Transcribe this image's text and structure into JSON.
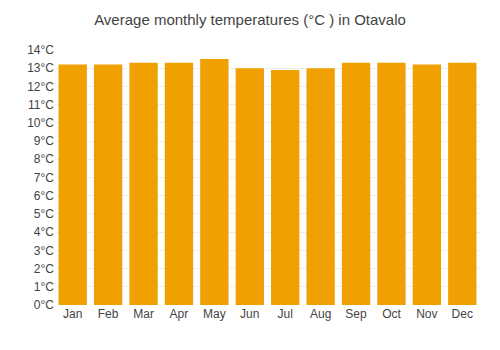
{
  "chart_data": {
    "type": "bar",
    "title": "Average monthly temperatures (°C ) in Otavalo",
    "categories": [
      "Jan",
      "Feb",
      "Mar",
      "Apr",
      "May",
      "Jun",
      "Jul",
      "Aug",
      "Sep",
      "Oct",
      "Nov",
      "Dec"
    ],
    "values": [
      13.2,
      13.2,
      13.3,
      13.3,
      13.5,
      13.0,
      12.9,
      13.0,
      13.3,
      13.3,
      13.2,
      13.3
    ],
    "color": "#F0A000",
    "ylim": [
      0,
      14
    ],
    "yticks": [
      {
        "value": 0,
        "label": "0°C"
      },
      {
        "value": 1,
        "label": "1°C"
      },
      {
        "value": 2,
        "label": "2°C"
      },
      {
        "value": 3,
        "label": "3°C"
      },
      {
        "value": 4,
        "label": "4°C"
      },
      {
        "value": 5,
        "label": "5°C"
      },
      {
        "value": 6,
        "label": "6°C"
      },
      {
        "value": 7,
        "label": "7°C"
      },
      {
        "value": 8,
        "label": "8°C"
      },
      {
        "value": 9,
        "label": "9°C"
      },
      {
        "value": 10,
        "label": "10°C"
      },
      {
        "value": 11,
        "label": "11°C"
      },
      {
        "value": 12,
        "label": "12°C"
      },
      {
        "value": 13,
        "label": "13°C"
      },
      {
        "value": 14,
        "label": "14°C"
      }
    ],
    "grid": true
  }
}
